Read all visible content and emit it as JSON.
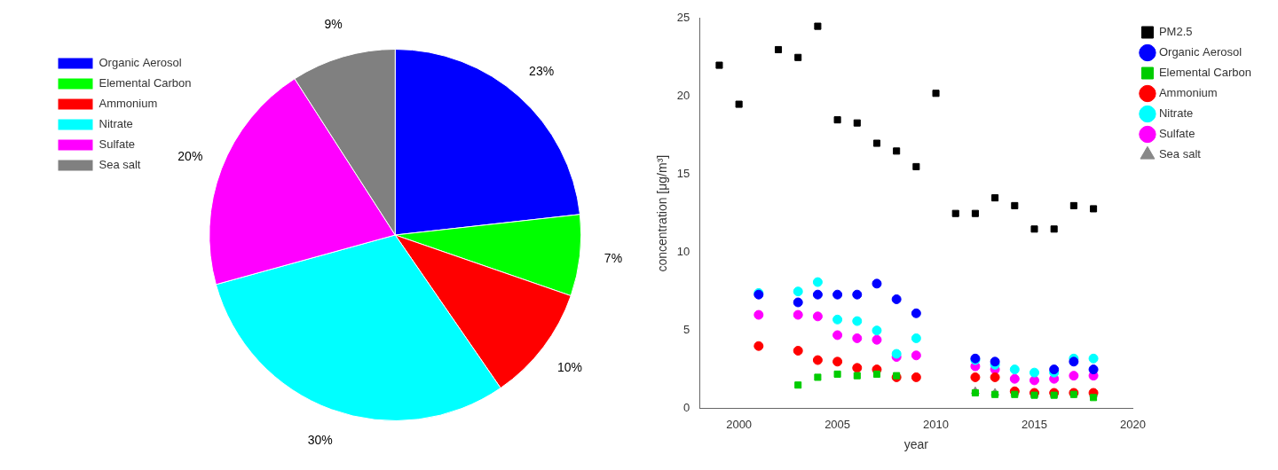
{
  "chart_data": [
    {
      "type": "pie",
      "categories": [
        "Organic Aerosol",
        "Elemental Carbon",
        "Ammonium",
        "Nitrate",
        "Sulfate",
        "Sea salt"
      ],
      "values": [
        23,
        7,
        10,
        30,
        20,
        9
      ],
      "value_labels": [
        "23%",
        "7%",
        "10%",
        "30%",
        "20%",
        "9%"
      ],
      "colors": [
        "#0000ff",
        "#00ff00",
        "#ff0000",
        "#00ffff",
        "#ff00ff",
        "#808080"
      ],
      "data_labels": true,
      "legend": "upper left"
    },
    {
      "type": "scatter",
      "xlabel": "year",
      "ylabel": "concentration [μg/m³]",
      "xlim": [
        1998,
        2020
      ],
      "ylim": [
        0,
        25
      ],
      "xticks": [
        2000,
        2005,
        2010,
        2015,
        2020
      ],
      "yticks": [
        0,
        5,
        10,
        15,
        20,
        25
      ],
      "grid": false,
      "legend": "upper right",
      "series": [
        {
          "name": "PM2.5",
          "color": "#000000",
          "marker": "square",
          "x": [
            1999,
            2000,
            2002,
            2003,
            2004,
            2005,
            2006,
            2007,
            2008,
            2009,
            2010,
            2011,
            2012,
            2013,
            2014,
            2015,
            2016,
            2017,
            2018
          ],
          "values": [
            22.0,
            19.5,
            23.0,
            22.5,
            24.5,
            18.5,
            18.3,
            17.0,
            16.5,
            15.5,
            20.2,
            12.5,
            12.5,
            13.5,
            13.0,
            11.5,
            11.5,
            13.0,
            12.8
          ]
        },
        {
          "name": "Organic Aerosol",
          "color": "#0000ff",
          "marker": "circle",
          "x": [
            2001,
            2003,
            2004,
            2005,
            2006,
            2007,
            2008,
            2009,
            2012,
            2013,
            2016,
            2017,
            2018
          ],
          "values": [
            7.3,
            6.8,
            7.3,
            7.3,
            7.3,
            8.0,
            7.0,
            6.1,
            3.2,
            3.0,
            2.5,
            3.0,
            2.5
          ]
        },
        {
          "name": "Elemental Carbon",
          "color": "#00cc00",
          "marker": "square",
          "x": [
            2003,
            2004,
            2005,
            2006,
            2007,
            2008,
            2012,
            2013,
            2014,
            2015,
            2016,
            2017,
            2018
          ],
          "values": [
            1.5,
            2.0,
            2.2,
            2.1,
            2.2,
            2.1,
            1.0,
            0.9,
            0.9,
            0.85,
            0.85,
            0.9,
            0.7
          ]
        },
        {
          "name": "Ammonium",
          "color": "#ff0000",
          "marker": "circle",
          "x": [
            2001,
            2003,
            2004,
            2005,
            2006,
            2007,
            2008,
            2009,
            2012,
            2013,
            2014,
            2015,
            2016,
            2017,
            2018
          ],
          "values": [
            4.0,
            3.7,
            3.1,
            3.0,
            2.6,
            2.5,
            2.0,
            2.0,
            2.0,
            2.0,
            1.1,
            1.0,
            1.0,
            1.0,
            1.0
          ]
        },
        {
          "name": "Nitrate",
          "color": "#00ffff",
          "marker": "circle",
          "x": [
            2001,
            2003,
            2004,
            2005,
            2006,
            2007,
            2008,
            2009,
            2012,
            2013,
            2014,
            2015,
            2016,
            2017,
            2018
          ],
          "values": [
            7.4,
            7.5,
            8.1,
            5.7,
            5.6,
            5.0,
            3.5,
            4.5,
            3.1,
            2.8,
            2.5,
            2.3,
            2.3,
            3.2,
            3.2
          ]
        },
        {
          "name": "Sulfate",
          "color": "#ff00ff",
          "marker": "circle",
          "x": [
            2001,
            2003,
            2004,
            2005,
            2006,
            2007,
            2008,
            2009,
            2012,
            2013,
            2014,
            2015,
            2016,
            2017,
            2018
          ],
          "values": [
            6.0,
            6.0,
            5.9,
            4.7,
            4.5,
            4.4,
            3.3,
            3.4,
            2.7,
            2.5,
            1.9,
            1.8,
            1.9,
            2.1,
            2.1
          ]
        },
        {
          "name": "Sea salt",
          "color": "#888888",
          "marker": "triangle",
          "x": [
            2012,
            2013,
            2014,
            2015,
            2016,
            2017,
            2018
          ],
          "values": [
            1.1,
            1.0,
            1.0,
            0.9,
            0.9,
            1.0,
            0.9
          ]
        }
      ]
    }
  ]
}
